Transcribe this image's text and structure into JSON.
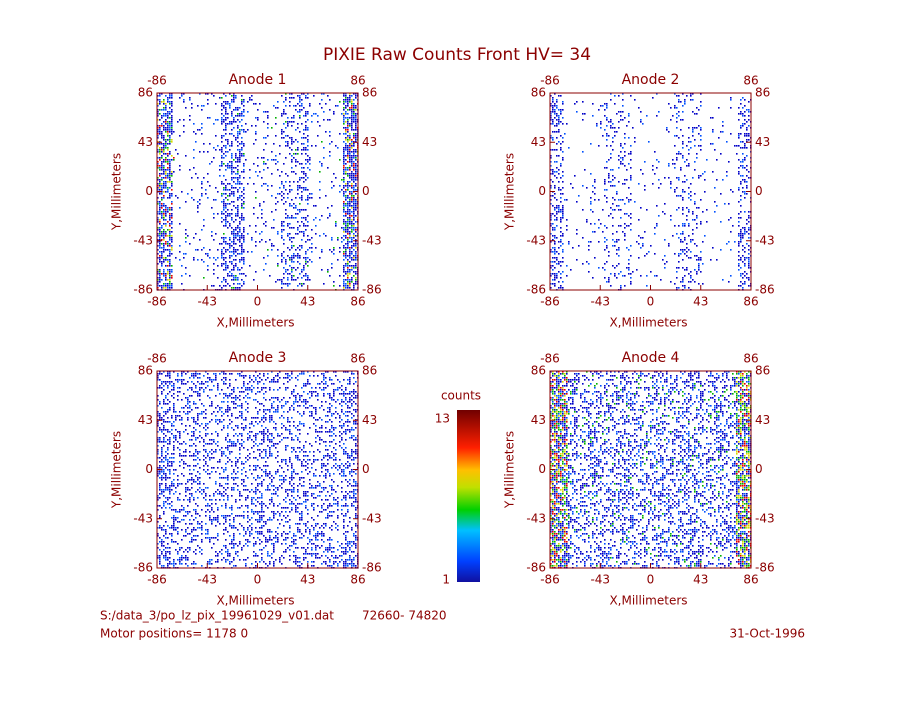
{
  "title": "PIXIE Raw Counts Front HV= 34",
  "chart_data": [
    {
      "type": "heatmap",
      "title": "Anode 1",
      "xlabel": "X,Millimeters",
      "ylabel": "Y,Millimeters",
      "xlim": [
        -86,
        86
      ],
      "ylim": [
        -86,
        86
      ],
      "xticks": [
        -86,
        -43,
        0,
        43,
        86
      ],
      "yticks": [
        -86,
        -43,
        0,
        43,
        86
      ]
    },
    {
      "type": "heatmap",
      "title": "Anode 2",
      "xlabel": "X,Millimeters",
      "ylabel": "Y,Millimeters",
      "xlim": [
        -86,
        86
      ],
      "ylim": [
        -86,
        86
      ],
      "xticks": [
        -86,
        -43,
        0,
        43,
        86
      ],
      "yticks": [
        -86,
        -43,
        0,
        43,
        86
      ]
    },
    {
      "type": "heatmap",
      "title": "Anode 3",
      "xlabel": "X,Millimeters",
      "ylabel": "Y,Millimeters",
      "xlim": [
        -86,
        86
      ],
      "ylim": [
        -86,
        86
      ],
      "xticks": [
        -86,
        -43,
        0,
        43,
        86
      ],
      "yticks": [
        -86,
        -43,
        0,
        43,
        86
      ]
    },
    {
      "type": "heatmap",
      "title": "Anode 4",
      "xlabel": "X,Millimeters",
      "ylabel": "Y,Millimeters",
      "xlim": [
        -86,
        86
      ],
      "ylim": [
        -86,
        86
      ],
      "xticks": [
        -86,
        -43,
        0,
        43,
        86
      ],
      "yticks": [
        -86,
        -43,
        0,
        43,
        86
      ]
    }
  ],
  "colorbar": {
    "label": "counts",
    "range": [
      1,
      13
    ]
  },
  "footer": {
    "file": "S:/data_3/po_lz_pix_19961029_v01.dat",
    "records": "72660- 74820",
    "motor": "Motor positions= 1178 0",
    "date": "31-Oct-1996"
  }
}
